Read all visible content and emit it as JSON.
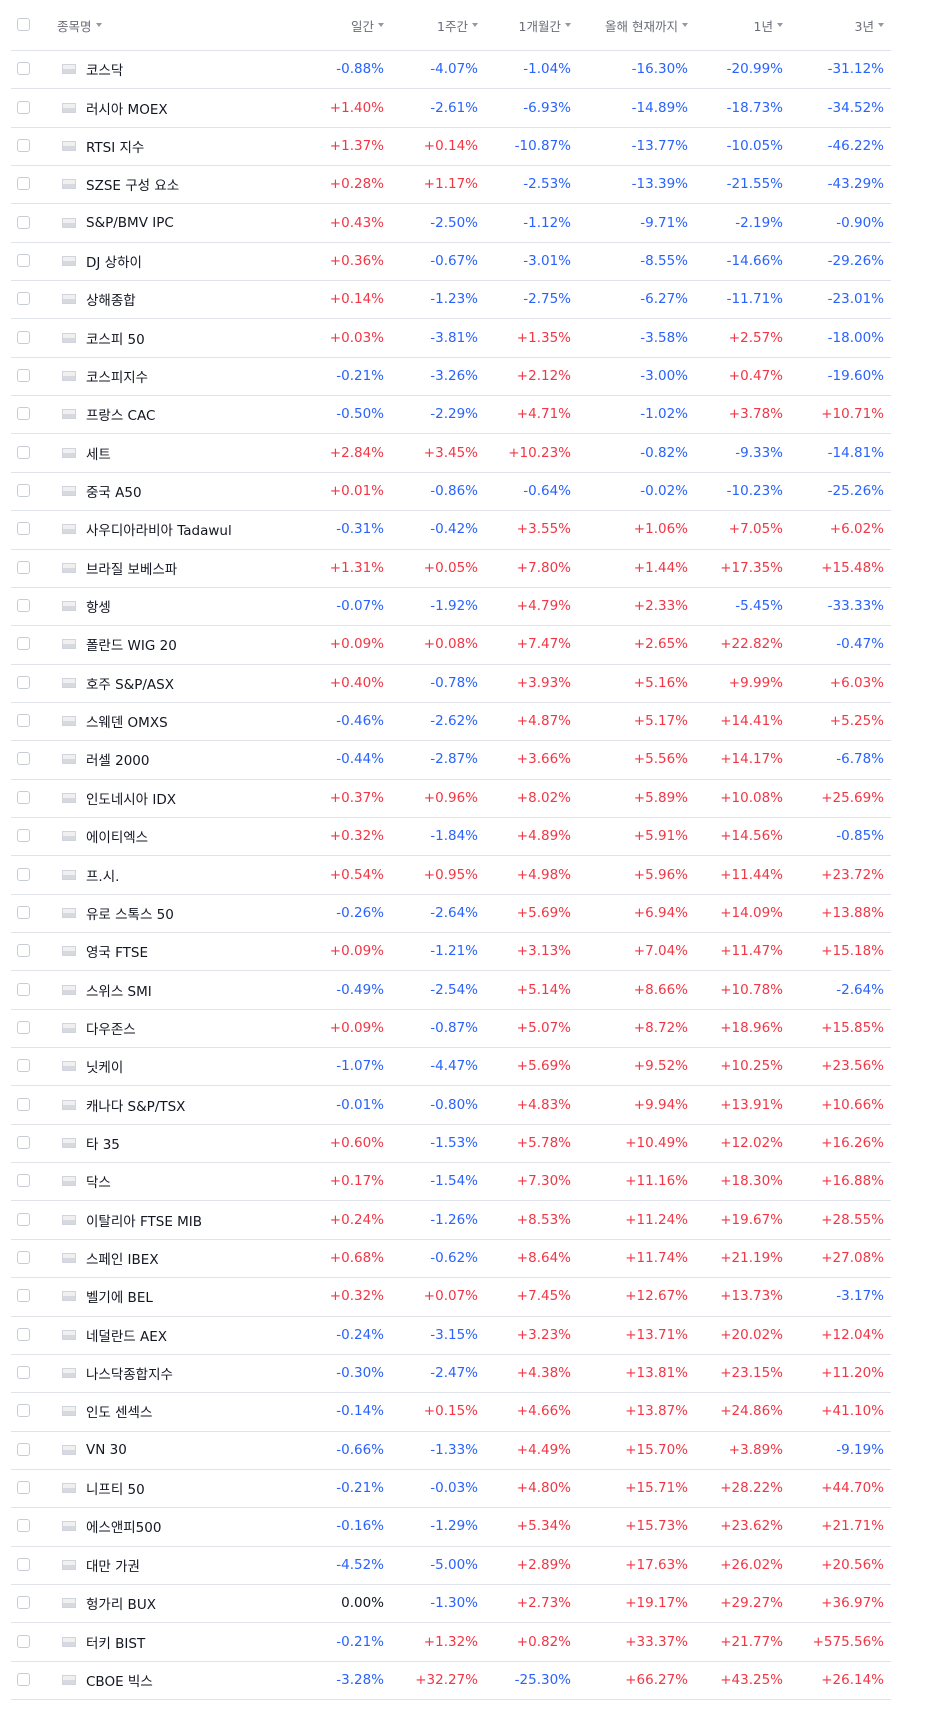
{
  "table": {
    "header": [
      "종목명",
      "일간",
      "1주간",
      "1개월간",
      "올해 현재까지",
      "1년",
      "3년"
    ],
    "rows": [
      [
        "코스닥",
        "-0.88%",
        "-4.07%",
        "-1.04%",
        "-16.30%",
        "-20.99%",
        "-31.12%"
      ],
      [
        "러시아 MOEX",
        "+1.40%",
        "-2.61%",
        "-6.93%",
        "-14.89%",
        "-18.73%",
        "-34.52%"
      ],
      [
        "RTSI 지수",
        "+1.37%",
        "+0.14%",
        "-10.87%",
        "-13.77%",
        "-10.05%",
        "-46.22%"
      ],
      [
        "SZSE 구성 요소",
        "+0.28%",
        "+1.17%",
        "-2.53%",
        "-13.39%",
        "-21.55%",
        "-43.29%"
      ],
      [
        "S&P/BMV IPC",
        "+0.43%",
        "-2.50%",
        "-1.12%",
        "-9.71%",
        "-2.19%",
        "-0.90%"
      ],
      [
        "DJ 상하이",
        "+0.36%",
        "-0.67%",
        "-3.01%",
        "-8.55%",
        "-14.66%",
        "-29.26%"
      ],
      [
        "상해종합",
        "+0.14%",
        "-1.23%",
        "-2.75%",
        "-6.27%",
        "-11.71%",
        "-23.01%"
      ],
      [
        "코스피 50",
        "+0.03%",
        "-3.81%",
        "+1.35%",
        "-3.58%",
        "+2.57%",
        "-18.00%"
      ],
      [
        "코스피지수",
        "-0.21%",
        "-3.26%",
        "+2.12%",
        "-3.00%",
        "+0.47%",
        "-19.60%"
      ],
      [
        "프랑스 CAC",
        "-0.50%",
        "-2.29%",
        "+4.71%",
        "-1.02%",
        "+3.78%",
        "+10.71%"
      ],
      [
        "세트",
        "+2.84%",
        "+3.45%",
        "+10.23%",
        "-0.82%",
        "-9.33%",
        "-14.81%"
      ],
      [
        "중국 A50",
        "+0.01%",
        "-0.86%",
        "-0.64%",
        "-0.02%",
        "-10.23%",
        "-25.26%"
      ],
      [
        "사우디아라비아 Tadawul",
        "-0.31%",
        "-0.42%",
        "+3.55%",
        "+1.06%",
        "+7.05%",
        "+6.02%"
      ],
      [
        "브라질 보베스파",
        "+1.31%",
        "+0.05%",
        "+7.80%",
        "+1.44%",
        "+17.35%",
        "+15.48%"
      ],
      [
        "항셍",
        "-0.07%",
        "-1.92%",
        "+4.79%",
        "+2.33%",
        "-5.45%",
        "-33.33%"
      ],
      [
        "폴란드 WIG 20",
        "+0.09%",
        "+0.08%",
        "+7.47%",
        "+2.65%",
        "+22.82%",
        "-0.47%"
      ],
      [
        "호주 S&P/ASX",
        "+0.40%",
        "-0.78%",
        "+3.93%",
        "+5.16%",
        "+9.99%",
        "+6.03%"
      ],
      [
        "스웨덴 OMXS",
        "-0.46%",
        "-2.62%",
        "+4.87%",
        "+5.17%",
        "+14.41%",
        "+5.25%"
      ],
      [
        "러셀 2000",
        "-0.44%",
        "-2.87%",
        "+3.66%",
        "+5.56%",
        "+14.17%",
        "-6.78%"
      ],
      [
        "인도네시아 IDX",
        "+0.37%",
        "+0.96%",
        "+8.02%",
        "+5.89%",
        "+10.08%",
        "+25.69%"
      ],
      [
        "에이티엑스",
        "+0.32%",
        "-1.84%",
        "+4.89%",
        "+5.91%",
        "+14.56%",
        "-0.85%"
      ],
      [
        "프.시.",
        "+0.54%",
        "+0.95%",
        "+4.98%",
        "+5.96%",
        "+11.44%",
        "+23.72%"
      ],
      [
        "유로 스톡스 50",
        "-0.26%",
        "-2.64%",
        "+5.69%",
        "+6.94%",
        "+14.09%",
        "+13.88%"
      ],
      [
        "영국 FTSE",
        "+0.09%",
        "-1.21%",
        "+3.13%",
        "+7.04%",
        "+11.47%",
        "+15.18%"
      ],
      [
        "스위스 SMI",
        "-0.49%",
        "-2.54%",
        "+5.14%",
        "+8.66%",
        "+10.78%",
        "-2.64%"
      ],
      [
        "다우존스",
        "+0.09%",
        "-0.87%",
        "+5.07%",
        "+8.72%",
        "+18.96%",
        "+15.85%"
      ],
      [
        "닛케이",
        "-1.07%",
        "-4.47%",
        "+5.69%",
        "+9.52%",
        "+10.25%",
        "+23.56%"
      ],
      [
        "캐나다 S&P/TSX",
        "-0.01%",
        "-0.80%",
        "+4.83%",
        "+9.94%",
        "+13.91%",
        "+10.66%"
      ],
      [
        "타 35",
        "+0.60%",
        "-1.53%",
        "+5.78%",
        "+10.49%",
        "+12.02%",
        "+16.26%"
      ],
      [
        "닥스",
        "+0.17%",
        "-1.54%",
        "+7.30%",
        "+11.16%",
        "+18.30%",
        "+16.88%"
      ],
      [
        "이탈리아 FTSE MIB",
        "+0.24%",
        "-1.26%",
        "+8.53%",
        "+11.24%",
        "+19.67%",
        "+28.55%"
      ],
      [
        "스페인 IBEX",
        "+0.68%",
        "-0.62%",
        "+8.64%",
        "+11.74%",
        "+21.19%",
        "+27.08%"
      ],
      [
        "벨기에 BEL",
        "+0.32%",
        "+0.07%",
        "+7.45%",
        "+12.67%",
        "+13.73%",
        "-3.17%"
      ],
      [
        "네덜란드 AEX",
        "-0.24%",
        "-3.15%",
        "+3.23%",
        "+13.71%",
        "+20.02%",
        "+12.04%"
      ],
      [
        "나스닥종합지수",
        "-0.30%",
        "-2.47%",
        "+4.38%",
        "+13.81%",
        "+23.15%",
        "+11.20%"
      ],
      [
        "인도 센섹스",
        "-0.14%",
        "+0.15%",
        "+4.66%",
        "+13.87%",
        "+24.86%",
        "+41.10%"
      ],
      [
        "VN 30",
        "-0.66%",
        "-1.33%",
        "+4.49%",
        "+15.70%",
        "+3.89%",
        "-9.19%"
      ],
      [
        "니프티 50",
        "-0.21%",
        "-0.03%",
        "+4.80%",
        "+15.71%",
        "+28.22%",
        "+44.70%"
      ],
      [
        "에스앤피500",
        "-0.16%",
        "-1.29%",
        "+5.34%",
        "+15.73%",
        "+23.62%",
        "+21.71%"
      ],
      [
        "대만 가권",
        "-4.52%",
        "-5.00%",
        "+2.89%",
        "+17.63%",
        "+26.02%",
        "+20.56%"
      ],
      [
        "헝가리 BUX",
        "0.00%",
        "-1.30%",
        "+2.73%",
        "+19.17%",
        "+29.27%",
        "+36.97%"
      ],
      [
        "터키 BIST",
        "-0.21%",
        "+1.32%",
        "+0.82%",
        "+33.37%",
        "+21.77%",
        "+575.56%"
      ],
      [
        "CBOE 빅스",
        "-3.28%",
        "+32.27%",
        "-25.30%",
        "+66.27%",
        "+43.25%",
        "+26.14%"
      ]
    ]
  }
}
